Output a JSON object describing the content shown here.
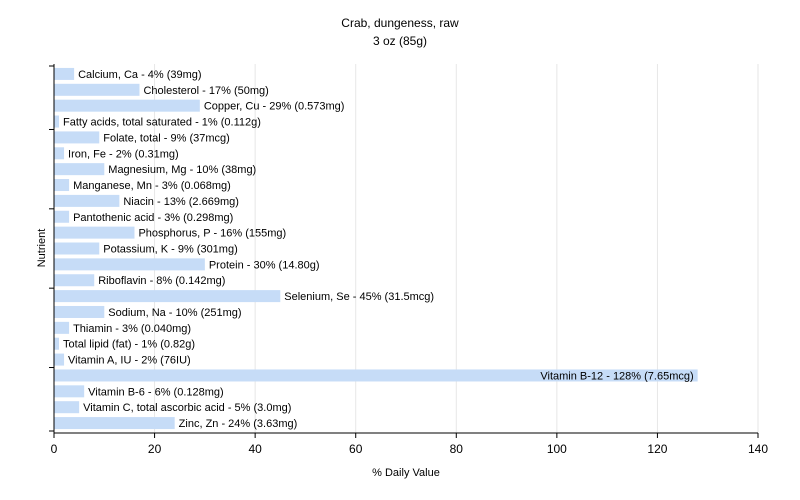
{
  "chart_data": {
    "type": "bar",
    "orientation": "horizontal",
    "title": "Crab, dungeness, raw",
    "subtitle": "3 oz (85g)",
    "xlabel": "% Daily Value",
    "ylabel": "Nutrient",
    "xlim": [
      0,
      140
    ],
    "xticks": [
      0,
      20,
      40,
      60,
      80,
      100,
      120,
      140
    ],
    "grid": "vertical",
    "bar_color": "#c6dcf7",
    "categories": [
      "Calcium, Ca",
      "Cholesterol",
      "Copper, Cu",
      "Fatty acids, total saturated",
      "Folate, total",
      "Iron, Fe",
      "Magnesium, Mg",
      "Manganese, Mn",
      "Niacin",
      "Pantothenic acid",
      "Phosphorus, P",
      "Potassium, K",
      "Protein",
      "Riboflavin",
      "Selenium, Se",
      "Sodium, Na",
      "Thiamin",
      "Total lipid (fat)",
      "Vitamin A, IU",
      "Vitamin B-12",
      "Vitamin B-6",
      "Vitamin C, total ascorbic acid",
      "Zinc, Zn"
    ],
    "values": [
      4,
      17,
      29,
      1,
      9,
      2,
      10,
      3,
      13,
      3,
      16,
      9,
      30,
      8,
      45,
      10,
      3,
      1,
      2,
      128,
      6,
      5,
      24
    ],
    "labels": [
      "Calcium, Ca - 4% (39mg)",
      "Cholesterol - 17% (50mg)",
      "Copper, Cu - 29% (0.573mg)",
      "Fatty acids, total saturated - 1% (0.112g)",
      "Folate, total - 9% (37mcg)",
      "Iron, Fe - 2% (0.31mg)",
      "Magnesium, Mg - 10% (38mg)",
      "Manganese, Mn - 3% (0.068mg)",
      "Niacin - 13% (2.669mg)",
      "Pantothenic acid - 3% (0.298mg)",
      "Phosphorus, P - 16% (155mg)",
      "Potassium, K - 9% (301mg)",
      "Protein - 30% (14.80g)",
      "Riboflavin - 8% (0.142mg)",
      "Selenium, Se - 45% (31.5mcg)",
      "Sodium, Na - 10% (251mg)",
      "Thiamin - 3% (0.040mg)",
      "Total lipid (fat) - 1% (0.82g)",
      "Vitamin A, IU - 2% (76IU)",
      "Vitamin B-12 - 128% (7.65mcg)",
      "Vitamin B-6 - 6% (0.128mg)",
      "Vitamin C, total ascorbic acid - 5% (3.0mg)",
      "Zinc, Zn - 24% (3.63mg)"
    ]
  }
}
